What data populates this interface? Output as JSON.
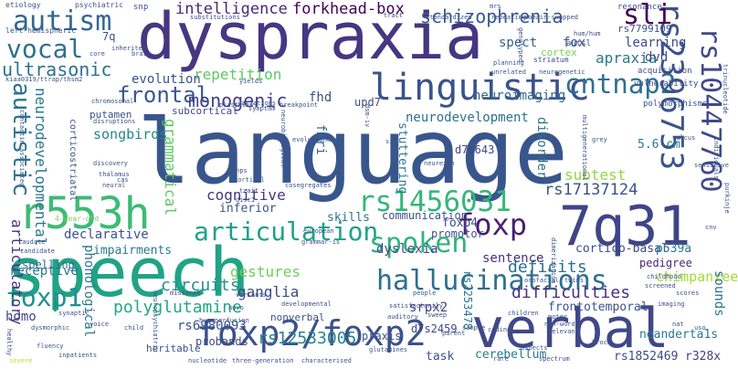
{
  "words": [
    {
      "text": "language",
      "color": "#39568c"
    },
    {
      "text": "speech",
      "color": "#20a386"
    },
    {
      "text": "dyspraxia",
      "color": "#453781"
    },
    {
      "text": "verbal",
      "color": "#3f4889"
    },
    {
      "text": "7q31",
      "color": "#404588"
    },
    {
      "text": "r553h",
      "color": "#3cbb75"
    },
    {
      "text": "foxp2/foxp2",
      "color": "#3b528b"
    },
    {
      "text": "hallucinations",
      "color": "#2d708e"
    },
    {
      "text": "linguistic",
      "color": "#3b528b"
    },
    {
      "text": "autism",
      "color": "#31688e"
    },
    {
      "text": "vocal",
      "color": "#2c728e"
    },
    {
      "text": "articulation",
      "color": "#1fa187"
    },
    {
      "text": "rs1456031",
      "color": "#35b779"
    },
    {
      "text": "spoken",
      "color": "#2fb47c"
    },
    {
      "text": "foxp",
      "color": "#481f70"
    },
    {
      "text": "cntnap2",
      "color": "#2d708e"
    },
    {
      "text": "rs2396753",
      "color": "#3b528b"
    },
    {
      "text": "rs10447760",
      "color": "#3e4a89"
    },
    {
      "text": "sli",
      "color": "#440154"
    },
    {
      "text": "autistic",
      "color": "#2c728e"
    },
    {
      "text": "foxp1",
      "color": "#21918c"
    },
    {
      "text": "ultrasonic",
      "color": "#2c728e"
    },
    {
      "text": "frontal",
      "color": "#38588c"
    },
    {
      "text": "schizophrenia",
      "color": "#38598c"
    },
    {
      "text": "forkhead-box",
      "color": "#440154"
    },
    {
      "text": "intelligence",
      "color": "#482878"
    },
    {
      "text": "monogenic",
      "color": "#433e85"
    },
    {
      "text": "neurodevelopmental",
      "color": "#2a788e"
    },
    {
      "text": "articulatory",
      "color": "#46337f"
    },
    {
      "text": "grammatical",
      "color": "#5ec962"
    },
    {
      "text": "polyglutamine",
      "color": "#22a884"
    },
    {
      "text": "circuits",
      "color": "#21918c"
    },
    {
      "text": "deficits",
      "color": "#2c728e"
    },
    {
      "text": "difficulties",
      "color": "#46327e"
    },
    {
      "text": "rs12533005",
      "color": "#25848e"
    },
    {
      "text": "rs17137124",
      "color": "#3b528b"
    },
    {
      "text": "fox",
      "color": "#3b528b"
    },
    {
      "text": "apraxia",
      "color": "#2a788e"
    },
    {
      "text": "learning",
      "color": "#3e4a89"
    },
    {
      "text": "spect",
      "color": "#355f8d"
    },
    {
      "text": "repetition",
      "color": "#5ec962"
    },
    {
      "text": "cognitive",
      "color": "#453781"
    },
    {
      "text": "fhd",
      "color": "#3b528b"
    },
    {
      "text": "dvd",
      "color": "#3e4989"
    },
    {
      "text": "fmri",
      "color": "#31688e"
    },
    {
      "text": "songbirds",
      "color": "#25858e"
    },
    {
      "text": "evolution",
      "color": "#3b528b"
    },
    {
      "text": "subtest",
      "color": "#90d743"
    },
    {
      "text": "chimpanzee",
      "color": "#a5db36"
    },
    {
      "text": "gestures",
      "color": "#6ece58"
    },
    {
      "text": "ganglia",
      "color": "#3e4989"
    },
    {
      "text": "rs6980093",
      "color": "#3b528b"
    },
    {
      "text": "receptive",
      "color": "#2a788e"
    },
    {
      "text": "phonological",
      "color": "#2a788e"
    },
    {
      "text": "homo",
      "color": "#414487"
    },
    {
      "text": "dyslexia",
      "color": "#414487"
    },
    {
      "text": "sentence",
      "color": "#46337f"
    },
    {
      "text": "neuroimaging",
      "color": "#31688e"
    },
    {
      "text": "neurodevelopment",
      "color": "#2c728e"
    },
    {
      "text": "foxp4",
      "color": "#3e4a89"
    },
    {
      "text": "srpx2",
      "color": "#433e85"
    },
    {
      "text": "rs2253478",
      "color": "#2a788e"
    },
    {
      "text": "d7s2459",
      "color": "#404588"
    },
    {
      "text": "stuttering",
      "color": "#2a788e"
    },
    {
      "text": "disorder",
      "color": "#2c728e"
    },
    {
      "text": "frontotemporal",
      "color": "#3b528b"
    },
    {
      "text": "cortico-basal",
      "color": "#3e4a89"
    },
    {
      "text": "pedigree",
      "color": "#482878"
    },
    {
      "text": "p539a",
      "color": "#2a788e"
    },
    {
      "text": "5.6-cm",
      "color": "#2a788e"
    },
    {
      "text": "rs1852469",
      "color": "#3e4a89"
    },
    {
      "text": "r328x",
      "color": "#433e85"
    },
    {
      "text": "neanderta1s",
      "color": "#2a788e"
    },
    {
      "text": "sounds",
      "color": "#2c728e"
    },
    {
      "text": "cerebellum",
      "color": "#2a788e"
    },
    {
      "text": "task",
      "color": "#3b528b"
    },
    {
      "text": "praxis",
      "color": "#3b528b"
    },
    {
      "text": "probands",
      "color": "#3e4a89"
    },
    {
      "text": "inferior",
      "color": "#3b528b"
    },
    {
      "text": "skills",
      "color": "#2a788e"
    },
    {
      "text": "communication",
      "color": "#3b528b"
    },
    {
      "text": "promotor",
      "color": "#3b528b"
    },
    {
      "text": "declarative",
      "color": "#3b528b"
    },
    {
      "text": "impairments",
      "color": "#2a788e"
    },
    {
      "text": "spelling",
      "color": "#31688e"
    },
    {
      "text": "upd7",
      "color": "#3e4a89"
    },
    {
      "text": "d7s643",
      "color": "#404588"
    },
    {
      "text": "heritable",
      "color": "#3b528b"
    },
    {
      "text": "nonverbal",
      "color": "#3b528b"
    },
    {
      "text": "putamen",
      "color": "#3b528b"
    },
    {
      "text": "corticostriatal",
      "color": "#3b528b"
    },
    {
      "text": "subcortical",
      "color": "#3e4a89"
    },
    {
      "text": "7q",
      "color": "#3b528b"
    },
    {
      "text": "rs7799109",
      "color": "#3b528b"
    },
    {
      "text": "acquisition",
      "color": "#3e4a89"
    },
    {
      "text": "vulnerability",
      "color": "#3e4a89"
    },
    {
      "text": "polymorphisms",
      "color": "#3b528b"
    },
    {
      "text": "autsl",
      "color": "#3b528b"
    },
    {
      "text": "resonance",
      "color": "#3e4a89"
    },
    {
      "text": "cortex",
      "color": "#7ad151"
    },
    {
      "text": "striatum",
      "color": "#3e4a89"
    },
    {
      "text": "snp",
      "color": "#3e4a89"
    },
    {
      "text": "etiology",
      "color": "#3b528b"
    },
    {
      "text": "psychiatric",
      "color": "#3b528b"
    },
    {
      "text": "left-hemispheric",
      "color": "#3b528b"
    },
    {
      "text": "inherited",
      "color": "#3b528b"
    },
    {
      "text": "kiaa0319/ttrap/thsm2",
      "color": "#3b528b"
    },
    {
      "text": "three-generation",
      "color": "#3b528b"
    },
    {
      "text": "characterised",
      "color": "#3b528b"
    },
    {
      "text": "nucleotide",
      "color": "#3b528b"
    },
    {
      "text": "glutamines",
      "color": "#3b528b"
    },
    {
      "text": "hypoperfusion",
      "color": "#3b528b"
    },
    {
      "text": "synaptic",
      "color": "#3b528b"
    },
    {
      "text": "dysmorphic",
      "color": "#3b528b"
    },
    {
      "text": "inpatients",
      "color": "#3b528b"
    },
    {
      "text": "severe",
      "color": "#bddf26"
    },
    {
      "text": "missense",
      "color": "#3b528b"
    },
    {
      "text": "developmental",
      "color": "#3b528b"
    },
    {
      "text": "european",
      "color": "#3b528b"
    },
    {
      "text": "grammar-is",
      "color": "#3b528b"
    },
    {
      "text": "cosegregates",
      "color": "#3b528b"
    },
    {
      "text": "neurobiological",
      "color": "#3b528b"
    },
    {
      "text": "standardized",
      "color": "#3b528b"
    },
    {
      "text": "substitutions",
      "color": "#3b528b"
    },
    {
      "text": "repeating",
      "color": "#3b528b"
    },
    {
      "text": "domain-swapped",
      "color": "#3b528b"
    },
    {
      "text": "hum/hum",
      "color": "#3b528b"
    },
    {
      "text": "tract",
      "color": "#3b528b"
    },
    {
      "text": "planning",
      "color": "#3b528b"
    },
    {
      "text": "unrelated",
      "color": "#3b528b"
    },
    {
      "text": "neurogenetic",
      "color": "#3b528b"
    },
    {
      "text": "dimerization",
      "color": "#3b528b"
    },
    {
      "text": "orofacial",
      "color": "#3b528b"
    },
    {
      "text": "twins",
      "color": "#3b528b"
    },
    {
      "text": "childhood",
      "color": "#3b528b"
    },
    {
      "text": "screened",
      "color": "#3b528b"
    },
    {
      "text": "scores",
      "color": "#3b528b"
    },
    {
      "text": "sulcus",
      "color": "#3b528b"
    },
    {
      "text": "grey",
      "color": "#3b528b"
    },
    {
      "text": "coding",
      "color": "#3b528b"
    },
    {
      "text": "aspects",
      "color": "#3b528b"
    },
    {
      "text": "spectrum",
      "color": "#3b528b"
    },
    {
      "text": "rare",
      "color": "#3b528b"
    },
    {
      "text": "broca",
      "color": "#3b528b"
    },
    {
      "text": "nat",
      "color": "#3b528b"
    },
    {
      "text": "relevant",
      "color": "#3b528b"
    },
    {
      "text": "children",
      "color": "#3b528b"
    },
    {
      "text": "imaging",
      "color": "#3b528b"
    },
    {
      "text": "sample",
      "color": "#3b528b"
    },
    {
      "text": "people",
      "color": "#3b528b"
    },
    {
      "text": "satisfactorily",
      "color": "#3b528b"
    },
    {
      "text": "auditory",
      "color": "#3b528b"
    },
    {
      "text": "caudate",
      "color": "#3b528b"
    },
    {
      "text": "candidate",
      "color": "#3b528b"
    },
    {
      "text": "voice",
      "color": "#3b528b"
    },
    {
      "text": "4-year-old",
      "color": "#7ad151"
    },
    {
      "text": "fluency",
      "color": "#3b528b"
    },
    {
      "text": "healthy",
      "color": "#3b528b"
    },
    {
      "text": "child",
      "color": "#3b528b"
    },
    {
      "text": "discovery",
      "color": "#3b528b"
    },
    {
      "text": "thalamus",
      "color": "#3b528b"
    },
    {
      "text": "neural",
      "color": "#3b528b"
    },
    {
      "text": "cas",
      "color": "#3b528b"
    },
    {
      "text": "brain",
      "color": "#3b528b"
    },
    {
      "text": "core",
      "color": "#3b528b"
    },
    {
      "text": "chromosomal",
      "color": "#3b528b"
    },
    {
      "text": "disruptions",
      "color": "#3b528b"
    },
    {
      "text": "variations",
      "color": "#3b528b"
    },
    {
      "text": "yields",
      "color": "#3b528b"
    },
    {
      "text": "breakpoint",
      "color": "#3b528b"
    },
    {
      "text": "symptom",
      "color": "#3b528b"
    },
    {
      "text": "plasticity",
      "color": "#3b528b"
    },
    {
      "text": "snps",
      "color": "#3b528b"
    },
    {
      "text": "cortical",
      "color": "#3b528b"
    },
    {
      "text": "trait",
      "color": "#3b528b"
    },
    {
      "text": "disc1",
      "color": "#3b528b"
    },
    {
      "text": "neurexin",
      "color": "#3b528b"
    },
    {
      "text": "mrs",
      "color": "#3b528b"
    },
    {
      "text": "genotyped",
      "color": "#3b528b"
    },
    {
      "text": "parent",
      "color": "#3b528b"
    },
    {
      "text": "sweep",
      "color": "#3b528b"
    },
    {
      "text": "non-words",
      "color": "#3b528b"
    },
    {
      "text": "motor",
      "color": "#3b528b"
    },
    {
      "text": "variants",
      "color": "#3b528b"
    },
    {
      "text": "neuropsychiatric",
      "color": "#3b528b"
    },
    {
      "text": "novo",
      "color": "#3b528b"
    },
    {
      "text": "evolutionary",
      "color": "#3b528b"
    },
    {
      "text": "dsm-iv",
      "color": "#3b528b"
    },
    {
      "text": "sib",
      "color": "#3b528b"
    },
    {
      "text": "multigenerational",
      "color": "#3b528b"
    },
    {
      "text": "trinucleotide",
      "color": "#3b528b"
    },
    {
      "text": "purkinje",
      "color": "#3b528b"
    },
    {
      "text": "individuals",
      "color": "#3b528b"
    },
    {
      "text": "sensitive",
      "color": "#3b528b"
    },
    {
      "text": "cnv",
      "color": "#3b528b"
    },
    {
      "text": "uso",
      "color": "#3b528b"
    },
    {
      "text": "contactin-associated",
      "color": "#3b528b"
    }
  ]
}
